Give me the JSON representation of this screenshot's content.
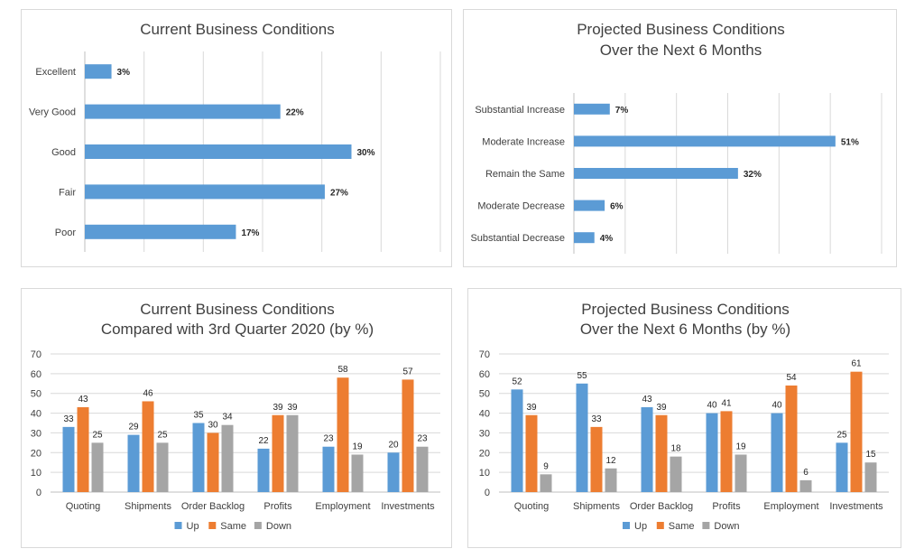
{
  "colors": {
    "blue": "#5b9bd5",
    "orange": "#ed7d31",
    "gray": "#a5a5a5"
  },
  "chart_data": [
    {
      "id": "c1",
      "type": "bar",
      "orientation": "horizontal",
      "title": [
        "Current Business Conditions"
      ],
      "categories": [
        "Excellent",
        "Very Good",
        "Good",
        "Fair",
        "Poor"
      ],
      "values": [
        3,
        22,
        30,
        27,
        17
      ],
      "value_suffix": "%",
      "xlim": [
        0,
        40
      ],
      "grid": "vertical",
      "color": "#5b9bd5"
    },
    {
      "id": "c2",
      "type": "bar",
      "orientation": "horizontal",
      "title": [
        "Projected Business Conditions",
        "Over the Next 6 Months"
      ],
      "categories": [
        "Substantial Increase",
        "Moderate Increase",
        "Remain the Same",
        "Moderate Decrease",
        "Substantial Decrease"
      ],
      "values": [
        7,
        51,
        32,
        6,
        4
      ],
      "value_suffix": "%",
      "xlim": [
        0,
        60
      ],
      "grid": "vertical",
      "color": "#5b9bd5"
    },
    {
      "id": "c3",
      "type": "bar",
      "orientation": "vertical",
      "title": [
        "Current Business Conditions",
        "Compared with 3rd Quarter 2020 (by %)"
      ],
      "categories": [
        "Quoting",
        "Shipments",
        "Order Backlog",
        "Profits",
        "Employment",
        "Investments"
      ],
      "series": [
        {
          "name": "Up",
          "values": [
            33,
            29,
            35,
            22,
            23,
            20
          ],
          "color": "#5b9bd5"
        },
        {
          "name": "Same",
          "values": [
            43,
            46,
            30,
            39,
            58,
            57
          ],
          "color": "#ed7d31"
        },
        {
          "name": "Down",
          "values": [
            25,
            25,
            34,
            39,
            19,
            23
          ],
          "color": "#a5a5a5"
        }
      ],
      "ylim": [
        0,
        70
      ],
      "yticks": [
        0,
        10,
        20,
        30,
        40,
        50,
        60,
        70
      ],
      "grid": "horizontal",
      "legend": "bottom"
    },
    {
      "id": "c4",
      "type": "bar",
      "orientation": "vertical",
      "title": [
        "Projected Business Conditions",
        "Over the Next 6 Months (by %)"
      ],
      "categories": [
        "Quoting",
        "Shipments",
        "Order Backlog",
        "Profits",
        "Employment",
        "Investments"
      ],
      "series": [
        {
          "name": "Up",
          "values": [
            52,
            55,
            43,
            40,
            40,
            25
          ],
          "color": "#5b9bd5"
        },
        {
          "name": "Same",
          "values": [
            39,
            33,
            39,
            41,
            54,
            61
          ],
          "color": "#ed7d31"
        },
        {
          "name": "Down",
          "values": [
            9,
            12,
            18,
            19,
            6,
            15
          ],
          "color": "#a5a5a5"
        }
      ],
      "ylim": [
        0,
        70
      ],
      "yticks": [
        0,
        10,
        20,
        30,
        40,
        50,
        60,
        70
      ],
      "grid": "horizontal",
      "legend": "bottom"
    }
  ]
}
